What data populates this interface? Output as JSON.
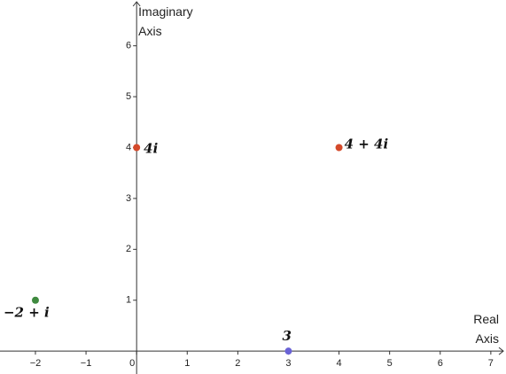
{
  "chart_data": {
    "type": "scatter",
    "x_label": "Real Axis",
    "y_label": "Imaginary Axis",
    "xlim": [
      -2.7,
      7.3
    ],
    "ylim": [
      -0.45,
      6.9
    ],
    "xticks": [
      {
        "value": -2,
        "label": "−2"
      },
      {
        "value": -1,
        "label": "−1"
      },
      0,
      1,
      2,
      3,
      4,
      5,
      6,
      7
    ],
    "yticks": [
      1,
      2,
      3,
      4,
      5,
      6
    ],
    "grid": false,
    "series": [
      {
        "color": "#d4492a",
        "x": [
          0,
          4
        ],
        "values": [
          4,
          4
        ],
        "labels": [
          "4i",
          "4 + 4i"
        ]
      },
      {
        "color": "#3f8a3f",
        "x": [
          -2
        ],
        "values": [
          1
        ],
        "labels": [
          "−2 + i"
        ]
      },
      {
        "color": "#6a63d6",
        "x": [
          3
        ],
        "values": [
          0
        ],
        "labels": [
          "3"
        ]
      }
    ]
  }
}
